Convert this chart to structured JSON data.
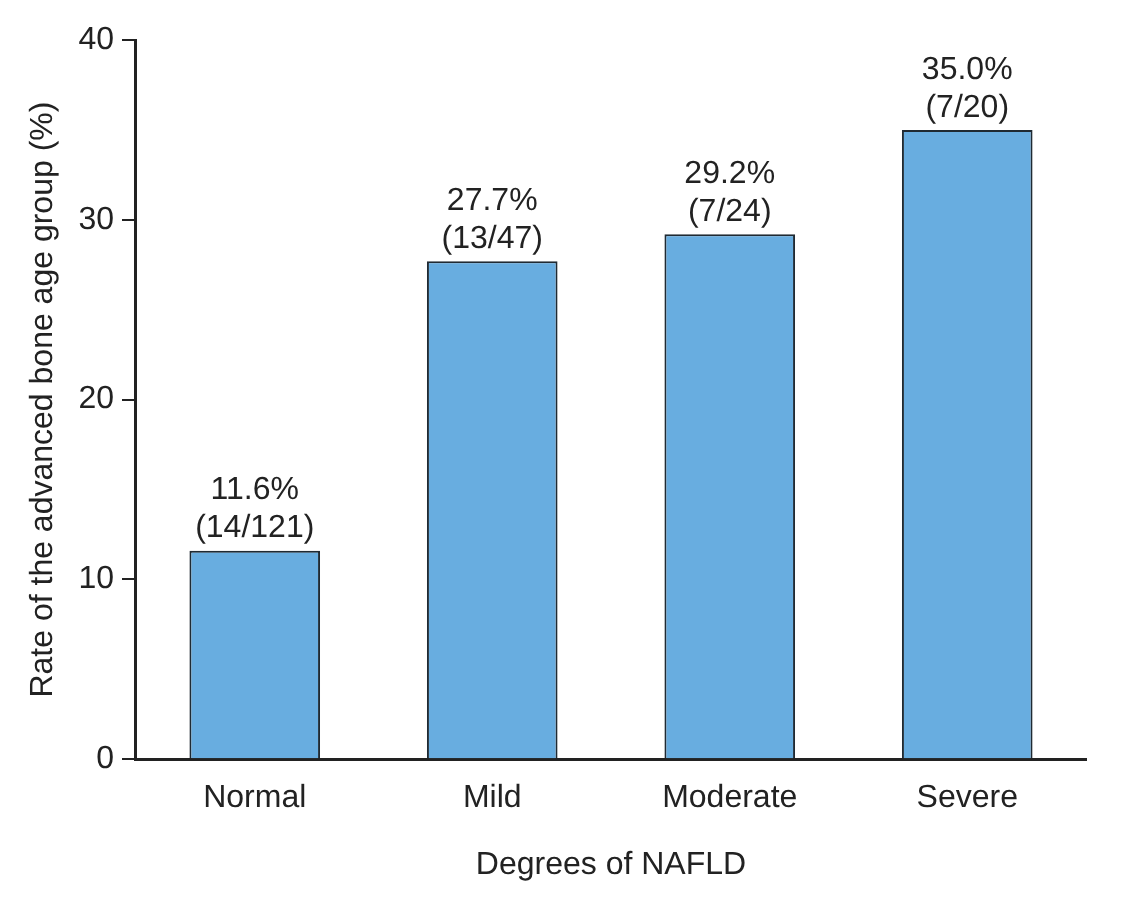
{
  "chart_data": {
    "type": "bar",
    "xlabel": "Degrees of NAFLD",
    "ylabel": "Rate of the advanced bone age group (%)",
    "categories": [
      "Normal",
      "Mild",
      "Moderate",
      "Severe"
    ],
    "values": [
      11.6,
      27.7,
      29.2,
      35.0
    ],
    "value_labels": [
      "11.6%\n(14/121)",
      "27.7%\n(13/47)",
      "29.2%\n(7/24)",
      "35.0%\n(7/20)"
    ],
    "color": "#68ade0",
    "ylim": [
      0,
      40
    ],
    "yticks": [
      0,
      10,
      20,
      30,
      40
    ],
    "grid": false,
    "legend": false
  }
}
